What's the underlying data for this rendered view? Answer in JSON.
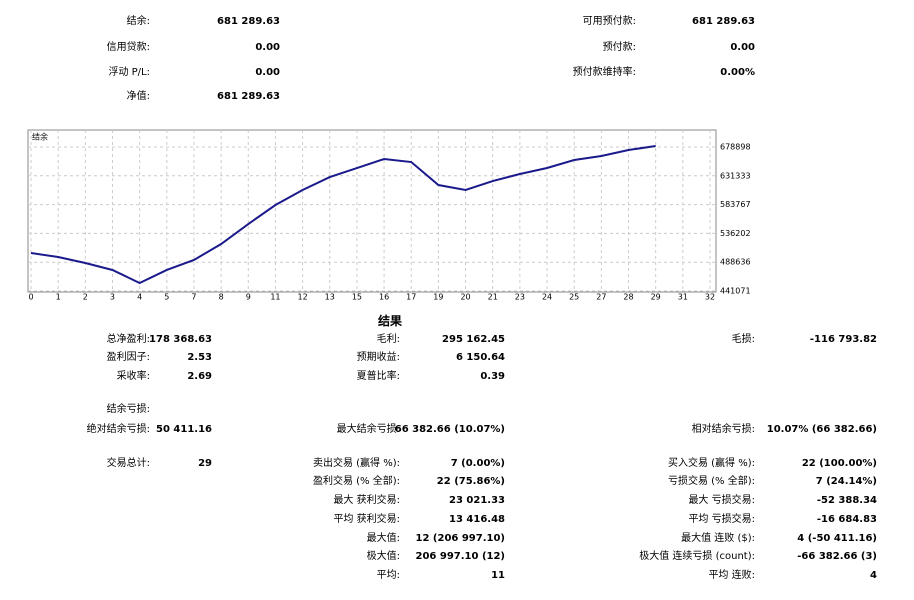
{
  "summary": {
    "left": [
      {
        "label": "结余:",
        "value": "681 289.63"
      },
      {
        "label": "信用贷款:",
        "value": "0.00"
      },
      {
        "label": "浮动 P/L:",
        "value": "0.00"
      },
      {
        "label": "净值:",
        "value": "681 289.63"
      }
    ],
    "right": [
      {
        "label": "可用预付款:",
        "value": "681 289.63"
      },
      {
        "label": "预付款:",
        "value": "0.00"
      },
      {
        "label": "预付款维持率:",
        "value": "0.00%"
      }
    ]
  },
  "chart_data": {
    "type": "line",
    "title": "结余",
    "categories": [
      "0",
      "1",
      "2",
      "3",
      "4",
      "5",
      "7",
      "8",
      "9",
      "11",
      "12",
      "13",
      "15",
      "16",
      "17",
      "19",
      "20",
      "21",
      "23",
      "24",
      "25",
      "27",
      "28",
      "29",
      "31",
      "32"
    ],
    "values": [
      503800,
      497200,
      487300,
      475800,
      454300,
      475800,
      492300,
      518700,
      551700,
      583100,
      607900,
      629300,
      644200,
      659100,
      654100,
      616100,
      607900,
      622700,
      634300,
      644200,
      657400,
      664000,
      673900,
      680600,
      null,
      null
    ],
    "color": "#1a1a8c",
    "ylim": [
      441071,
      707000
    ],
    "yticks": [
      441071,
      488636,
      536202,
      583767,
      631333,
      678898
    ],
    "grid": true
  },
  "results": {
    "title": "结果",
    "rows": [
      [
        {
          "label": "总净盈利:",
          "value": "178 368.63"
        },
        {
          "label": "毛利:",
          "value": "295 162.45"
        },
        {
          "label": "毛损:",
          "value": "-116 793.82"
        }
      ],
      [
        {
          "label": "盈利因子:",
          "value": "2.53"
        },
        {
          "label": "预期收益:",
          "value": "6 150.64"
        },
        null
      ],
      [
        {
          "label": "采收率:",
          "value": "2.69"
        },
        {
          "label": "夏普比率:",
          "value": "0.39"
        },
        null
      ],
      [
        {
          "label": "结余亏损:"
        },
        null,
        null
      ],
      [
        {
          "label": "绝对结余亏损:",
          "value": "50 411.16"
        },
        {
          "label": "最大结余亏损:",
          "value": "66 382.66 (10.07%)"
        },
        {
          "label": "相对结余亏损:",
          "value": "10.07% (66 382.66)"
        }
      ],
      [
        {
          "label": "交易总计:",
          "value": "29"
        },
        {
          "label": "卖出交易 (赢得 %):",
          "value": "7 (0.00%)"
        },
        {
          "label": "买入交易 (赢得 %):",
          "value": "22 (100.00%)"
        }
      ],
      [
        null,
        {
          "label": "盈利交易 (% 全部):",
          "value": "22 (75.86%)"
        },
        {
          "label": "亏损交易 (% 全部):",
          "value": "7 (24.14%)"
        }
      ],
      [
        null,
        {
          "label": "最大 获利交易:",
          "value": "23 021.33"
        },
        {
          "label": "最大 亏损交易:",
          "value": "-52 388.34"
        }
      ],
      [
        null,
        {
          "label": "平均 获利交易:",
          "value": "13 416.48"
        },
        {
          "label": "平均 亏损交易:",
          "value": "-16 684.83"
        }
      ],
      [
        null,
        {
          "label": "最大值:",
          "value": "12 (206 997.10)"
        },
        {
          "label": "最大值 连败 ($):",
          "value": "4 (-50 411.16)"
        }
      ],
      [
        null,
        {
          "label": "极大值:",
          "value": "206 997.10 (12)"
        },
        {
          "label": "极大值 连续亏损 (count):",
          "value": "-66 382.66 (3)"
        }
      ],
      [
        null,
        {
          "label": "平均:",
          "value": "11"
        },
        {
          "label": "平均 连败:",
          "value": "4"
        }
      ]
    ]
  }
}
